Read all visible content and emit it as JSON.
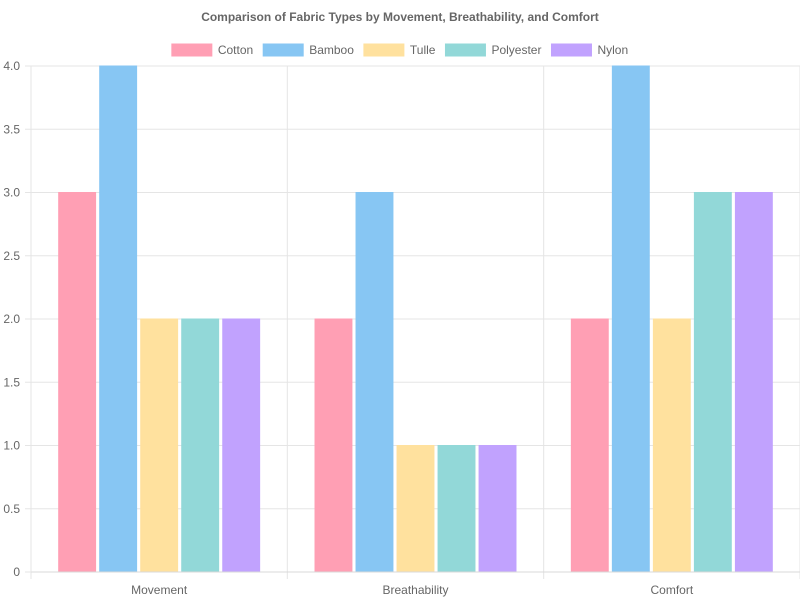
{
  "chart_data": {
    "type": "bar",
    "title": "Comparison of Fabric Types by Movement, Breathability, and Comfort",
    "categories": [
      "Movement",
      "Breathability",
      "Comfort"
    ],
    "series": [
      {
        "name": "Cotton",
        "values": [
          3,
          2,
          2
        ],
        "color": "#FF9FB4",
        "border": "#FF9FB4"
      },
      {
        "name": "Bamboo",
        "values": [
          4,
          3,
          4
        ],
        "color": "#87C6F3",
        "border": "#87C6F3"
      },
      {
        "name": "Tulle",
        "values": [
          2,
          1,
          2
        ],
        "color": "#FFE19E",
        "border": "#FFE19E"
      },
      {
        "name": "Polyester",
        "values": [
          2,
          1,
          3
        ],
        "color": "#92D8D8",
        "border": "#92D8D8"
      },
      {
        "name": "Nylon",
        "values": [
          2,
          1,
          3
        ],
        "color": "#C1A2FE",
        "border": "#C1A2FE"
      }
    ],
    "ylim": [
      0,
      4
    ],
    "yticks": [
      "0",
      "0.5",
      "1.0",
      "1.5",
      "2.0",
      "2.5",
      "3.0",
      "3.5",
      "4.0"
    ],
    "ytick_values": [
      0,
      0.5,
      1,
      1.5,
      2,
      2.5,
      3,
      3.5,
      4
    ],
    "grid": true,
    "legend_position": "top"
  }
}
